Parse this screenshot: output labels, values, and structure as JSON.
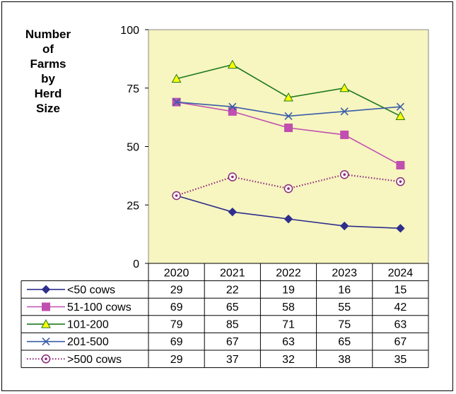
{
  "chart_data": {
    "type": "line",
    "ylabel_lines": [
      "Number",
      "of",
      "Farms",
      "by",
      "Herd",
      "Size"
    ],
    "categories": [
      "2020",
      "2021",
      "2022",
      "2023",
      "2024"
    ],
    "ylim": [
      0,
      100
    ],
    "yticks": [
      0,
      25,
      50,
      75,
      100
    ],
    "plot_background": "#F7F5C0",
    "grid": false,
    "legend": "data-table-below",
    "series": [
      {
        "name": "<50 cows",
        "values": [
          29,
          22,
          19,
          16,
          15
        ],
        "color": "#2E2E8C",
        "marker": "diamond",
        "line": "solid"
      },
      {
        "name": "51-100 cows",
        "values": [
          69,
          65,
          58,
          55,
          42
        ],
        "color": "#C04FB0",
        "marker": "square",
        "line": "solid"
      },
      {
        "name": "101-200",
        "values": [
          79,
          85,
          71,
          75,
          63
        ],
        "color": "#1E7A1E",
        "marker": "triangle",
        "marker_fill": "#FFFF00",
        "line": "solid"
      },
      {
        "name": "201-500",
        "values": [
          69,
          67,
          63,
          65,
          67
        ],
        "color": "#3A5DA8",
        "marker": "x",
        "line": "solid"
      },
      {
        "name": ">500 cows",
        "values": [
          29,
          37,
          32,
          38,
          35
        ],
        "color": "#8B2A7A",
        "marker": "circle-dot",
        "line": "dotted"
      }
    ]
  }
}
